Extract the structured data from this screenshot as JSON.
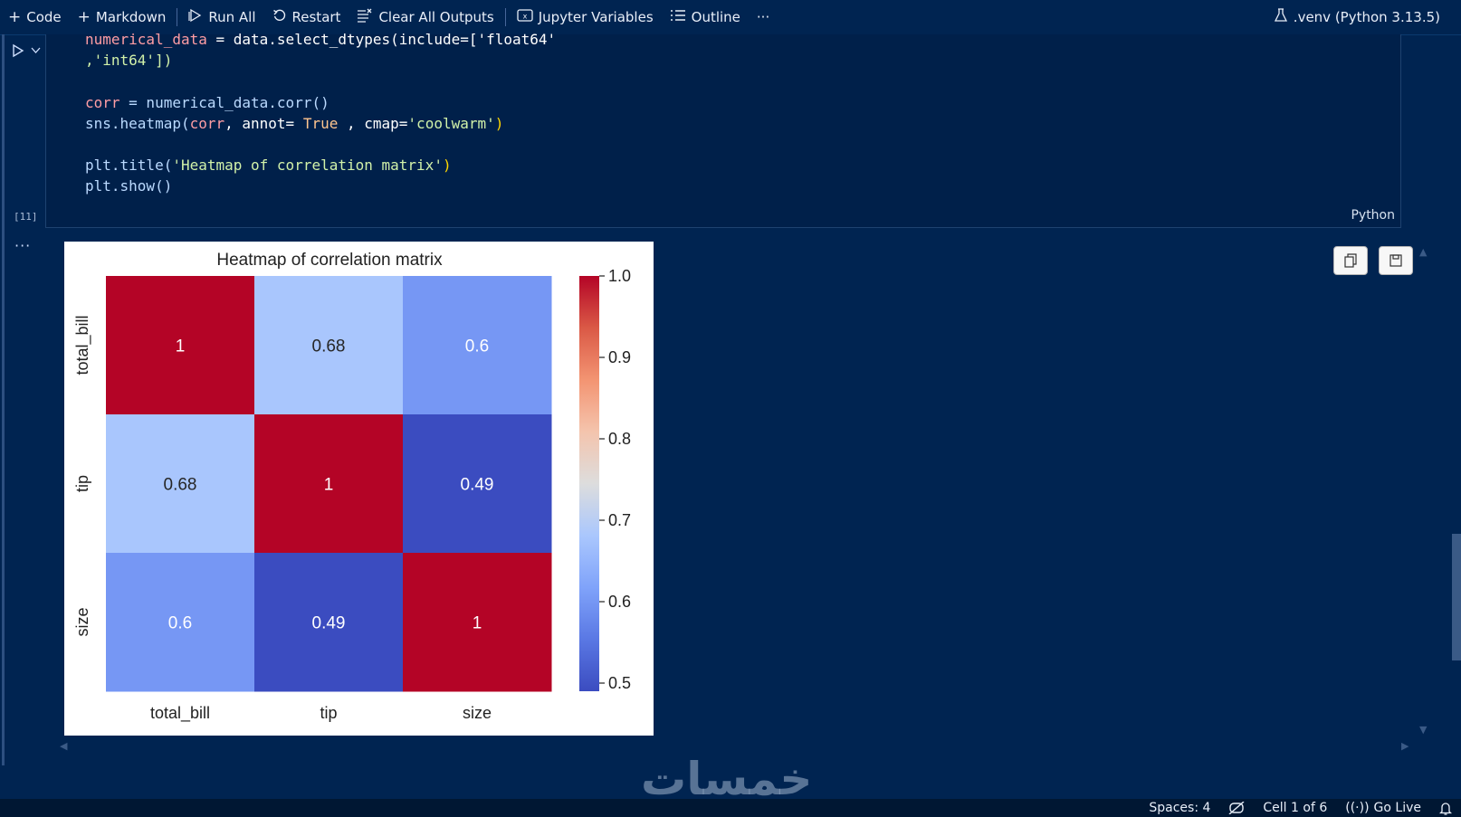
{
  "toolbar": {
    "code_label": "Code",
    "markdown_label": "Markdown",
    "run_all_label": "Run All",
    "restart_label": "Restart",
    "clear_outputs_label": "Clear All Outputs",
    "variables_label": "Jupyter Variables",
    "outline_label": "Outline",
    "more_label": "···",
    "kernel_label": ".venv (Python 3.13.5)"
  },
  "cell": {
    "execution_count": "[11]",
    "language": "Python",
    "code_lines": {
      "l1_var": "numerical_data",
      "l1_rest": " = data.select_dtypes(include=['float64'",
      "l2": ",'int64'])",
      "l4_var": "corr",
      "l4_rest": " = numerical_data.corr()",
      "l5_a": "sns.heatmap(",
      "l5_b": "corr",
      "l5_c": ", annot= ",
      "l5_d": "True",
      "l5_e": " , cmap=",
      "l5_f": "'coolwarm'",
      "l5_g": ")",
      "l7_a": "plt.title(",
      "l7_b": "'Heatmap of correlation matrix'",
      "l7_c": ")",
      "l8": "plt.show()"
    }
  },
  "output": {
    "more_label": "···",
    "copy_icon": "copy-icon",
    "save_icon": "save-icon"
  },
  "chart_data": {
    "type": "heatmap",
    "title": "Heatmap of correlation matrix",
    "x_labels": [
      "total_bill",
      "tip",
      "size"
    ],
    "y_labels": [
      "total_bill",
      "tip",
      "size"
    ],
    "values": [
      [
        1.0,
        0.68,
        0.6
      ],
      [
        0.68,
        1.0,
        0.49
      ],
      [
        0.6,
        0.49,
        1.0
      ]
    ],
    "annotations": [
      [
        "1",
        "0.68",
        "0.6"
      ],
      [
        "0.68",
        "1",
        "0.49"
      ],
      [
        "0.6",
        "0.49",
        "1"
      ]
    ],
    "colormap": "coolwarm",
    "colorbar_range": [
      0.49,
      1.0
    ],
    "colorbar_ticks": [
      "1.0",
      "0.9",
      "0.8",
      "0.7",
      "0.6",
      "0.5"
    ],
    "colorbar_tick_values": [
      1.0,
      0.9,
      0.8,
      0.7,
      0.6,
      0.5
    ]
  },
  "watermark": "خمسات",
  "status_bar": {
    "spaces_label": "Spaces: 4",
    "cell_label": "Cell 1 of 6",
    "go_live_label": "Go Live"
  }
}
